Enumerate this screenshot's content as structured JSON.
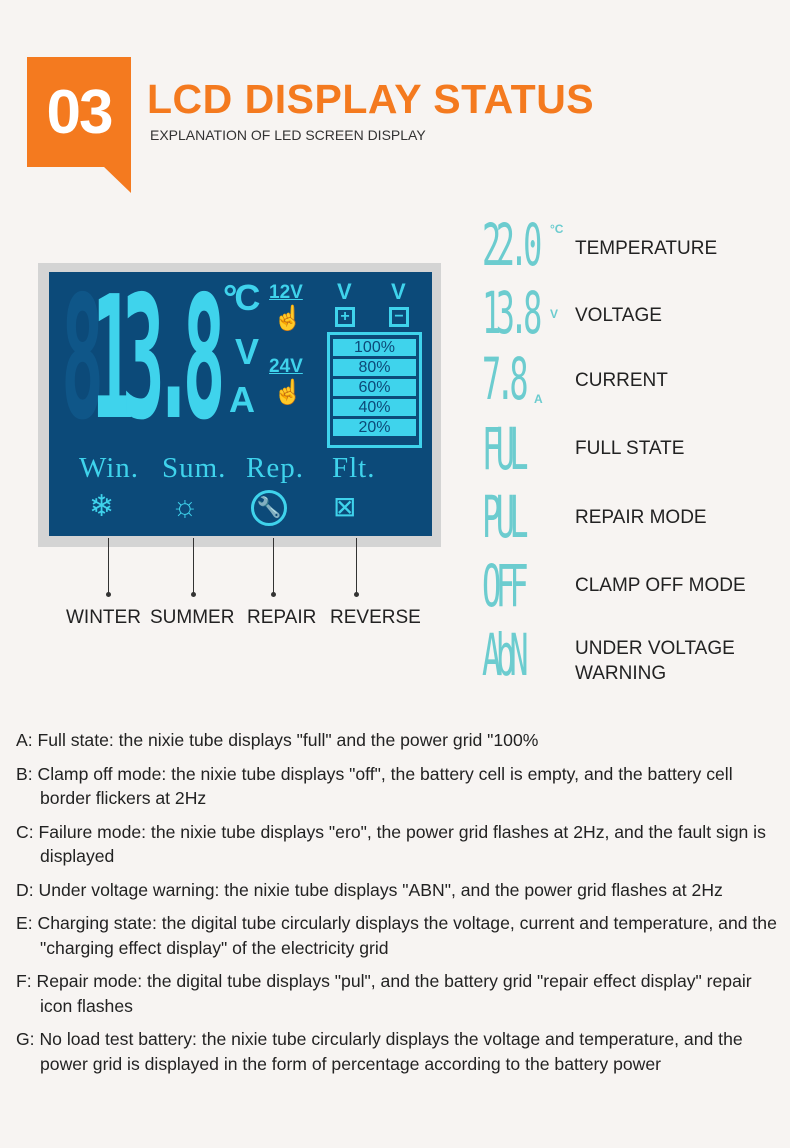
{
  "header": {
    "number": "03",
    "title": "LCD DISPLAY STATUS",
    "subtitle": "EXPLANATION OF LED SCREEN DISPLAY",
    "accent_color": "#f47a1f"
  },
  "lcd": {
    "digits_ghost": "8",
    "digits": "13.8",
    "units": [
      "°C",
      "V",
      "A"
    ],
    "voltage_options": [
      "12V",
      "24V"
    ],
    "battery_levels": [
      "100%",
      "80%",
      "60%",
      "40%",
      "20%"
    ],
    "terminals": [
      "+",
      "−"
    ],
    "modes": [
      {
        "label": "Win.",
        "icon": "snowflake-icon",
        "name": "WINTER"
      },
      {
        "label": "Sum.",
        "icon": "sun-icon",
        "name": "SUMMER"
      },
      {
        "label": "Rep.",
        "icon": "wrench-icon",
        "name": "REPAIR"
      },
      {
        "label": "Flt.",
        "icon": "battery-crossed-icon",
        "name": "REVERSE"
      }
    ],
    "background_color": "#0c4a79",
    "segment_color": "#3fd3ec"
  },
  "states": [
    {
      "display": "22.0",
      "unit": "°C",
      "label": "TEMPERATURE"
    },
    {
      "display": "13.8",
      "unit": "V",
      "label": "VOLTAGE"
    },
    {
      "display": "7.8",
      "unit": "A",
      "label": "CURRENT"
    },
    {
      "display": "FUL",
      "unit": "",
      "label": "FULL STATE"
    },
    {
      "display": "PUL",
      "unit": "",
      "label": "REPAIR MODE"
    },
    {
      "display": "OFF",
      "unit": "",
      "label": "CLAMP OFF MODE"
    },
    {
      "display": "AbN",
      "unit": "",
      "label": "UNDER VOLTAGE WARNING"
    }
  ],
  "notes": [
    "A: Full state: the nixie tube displays \"full\" and the power grid \"100%",
    "B: Clamp off mode: the nixie tube displays \"off\", the battery cell is empty, and the battery cell border flickers at 2Hz",
    "C: Failure mode: the nixie tube displays \"ero\", the power grid flashes at 2Hz, and the fault sign is displayed",
    "D: Under voltage warning: the nixie tube displays \"ABN\", and the power grid flashes at 2Hz",
    "E: Charging state: the digital tube circularly displays the voltage, current and temperature, and the \"charging effect display\" of the electricity grid",
    "F: Repair mode: the digital tube displays \"pul\", and the battery grid \"repair effect display\" repair icon flashes",
    "G: No load test battery: the nixie tube circularly displays the voltage and temperature, and the power grid is displayed in the form of percentage according to the battery power"
  ]
}
